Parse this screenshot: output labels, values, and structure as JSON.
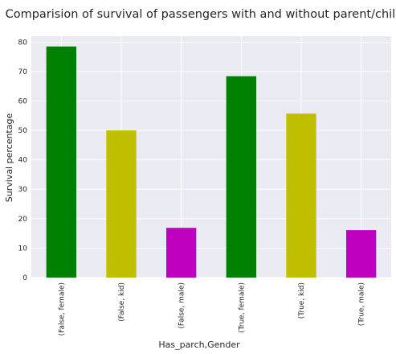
{
  "chart_data": {
    "type": "bar",
    "title": "Comparision of survival of passengers with and without parent/child",
    "xlabel": "Has_parch,Gender",
    "ylabel": "Survival percentage",
    "categories": [
      "(False, female)",
      "(False, kid)",
      "(False, male)",
      "(True, female)",
      "(True, kid)",
      "(True, male)"
    ],
    "values": [
      78.5,
      50.0,
      16.9,
      68.4,
      55.7,
      16.1
    ],
    "colors": [
      "#008000",
      "#bfbf00",
      "#bf00bf",
      "#008000",
      "#bfbf00",
      "#bf00bf"
    ],
    "ylim": [
      0,
      82
    ],
    "yticks": [
      0,
      10,
      20,
      30,
      40,
      50,
      60,
      70,
      80
    ],
    "grid": true,
    "background": "#eaeaf2"
  }
}
